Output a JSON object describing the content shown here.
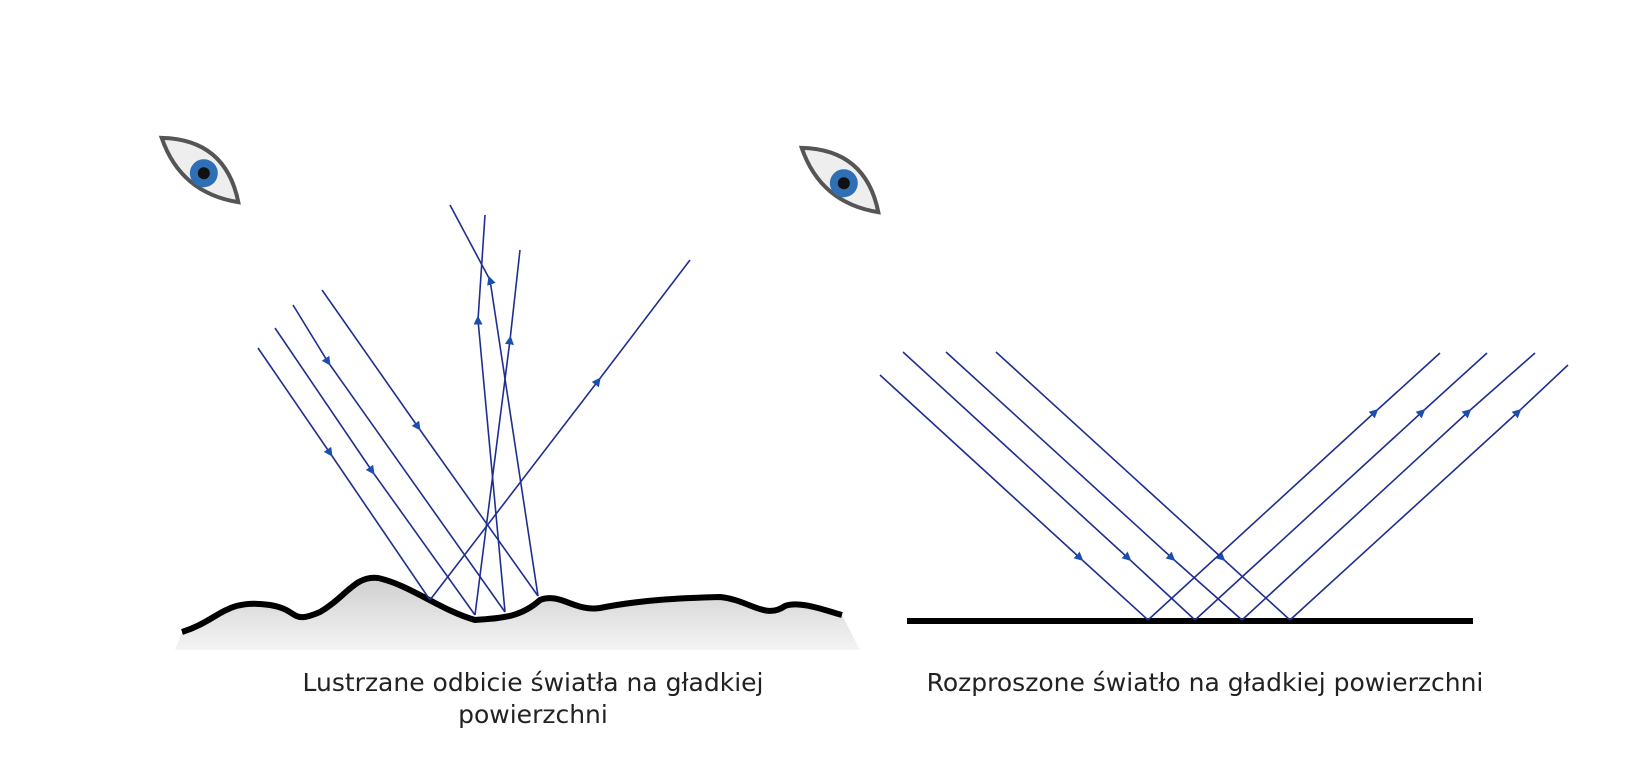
{
  "panels": [
    {
      "caption": "Lustrzane odbicie światła na gładkiej powierzchni"
    },
    {
      "caption": "Rozproszone światło na gładkiej powierzchni"
    }
  ]
}
